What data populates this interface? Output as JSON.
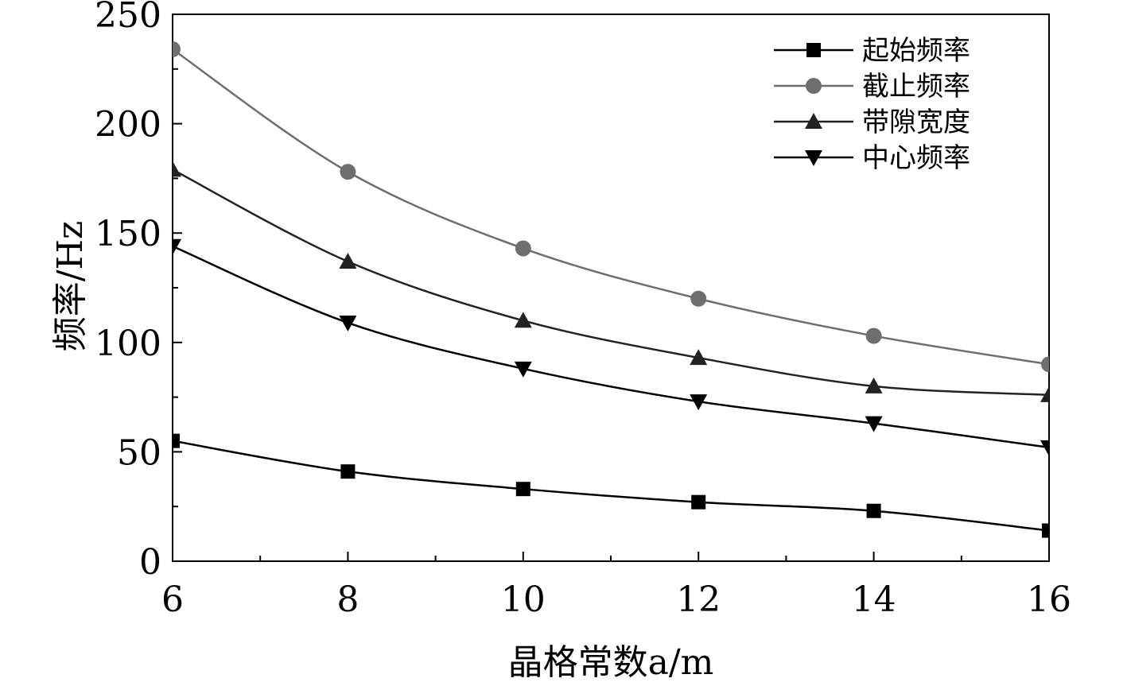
{
  "chart_data": {
    "type": "line",
    "xlabel": "晶格常数a/m",
    "ylabel": "频率/Hz",
    "xlim": [
      6,
      16
    ],
    "ylim": [
      0,
      250
    ],
    "x_ticks": [
      6,
      8,
      10,
      12,
      14,
      16
    ],
    "y_ticks": [
      0,
      50,
      100,
      150,
      200,
      250
    ],
    "x": [
      6,
      8,
      10,
      12,
      14,
      16
    ],
    "legend_position": "top-right",
    "grid": false,
    "series": [
      {
        "name": "起始频率",
        "marker": "square",
        "color": "#000000",
        "values": [
          55,
          41,
          33,
          27,
          23,
          14
        ]
      },
      {
        "name": "截止频率",
        "marker": "circle",
        "color": "#6e6e6e",
        "values": [
          234,
          178,
          143,
          120,
          103,
          90
        ]
      },
      {
        "name": "带隙宽度",
        "marker": "triangle-up",
        "color": "#222222",
        "values": [
          179,
          137,
          110,
          93,
          80,
          76
        ]
      },
      {
        "name": "中心频率",
        "marker": "triangle-down",
        "color": "#000000",
        "values": [
          144,
          109,
          88,
          73,
          63,
          52
        ]
      }
    ]
  }
}
